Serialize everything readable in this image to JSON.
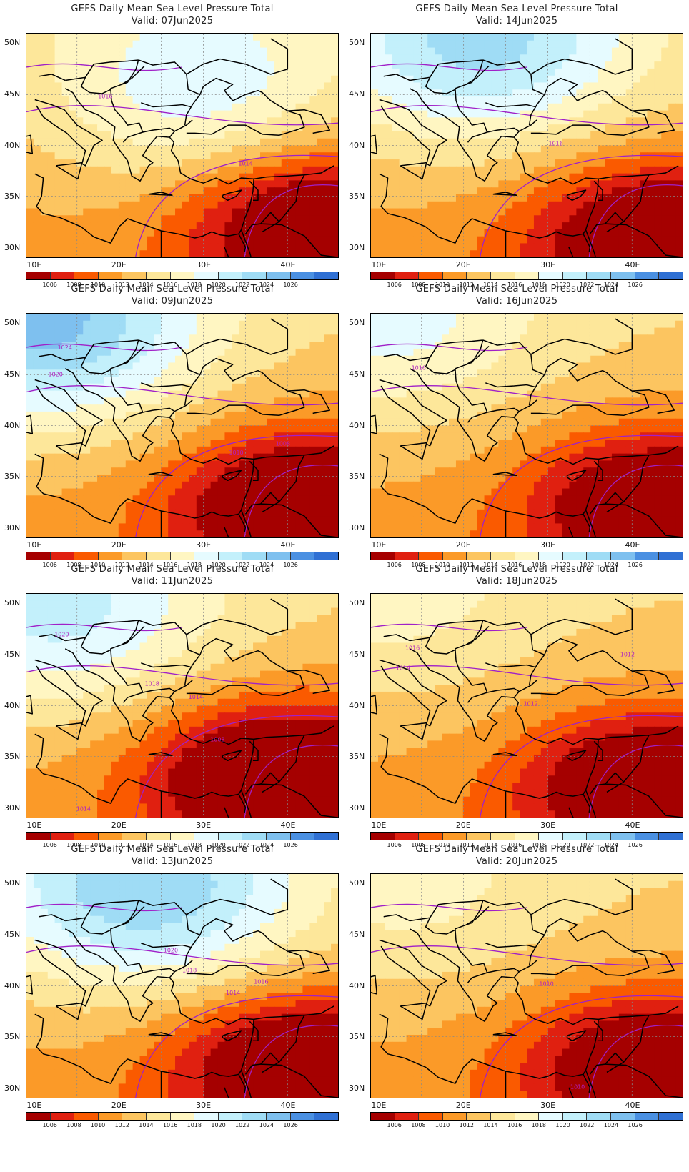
{
  "title": "GEFS Daily Mean Sea Level Pressure Total",
  "valid_prefix": "Valid:",
  "lat_labels": [
    "50N",
    "45N",
    "40N",
    "35N",
    "30N"
  ],
  "lon_labels": [
    "10E",
    "20E",
    "30E",
    "40E"
  ],
  "colorbar": {
    "colors": [
      "#a50000",
      "#e02010",
      "#fa5a00",
      "#fb9a28",
      "#fcc560",
      "#fde79a",
      "#fff6c2",
      "#e6fbff",
      "#c3f0fb",
      "#9fdcf5",
      "#7ec0ef",
      "#4a90e2",
      "#2f70d4"
    ],
    "labels": [
      "1006",
      "1008",
      "1010",
      "1012",
      "1014",
      "1016",
      "1018",
      "1020",
      "1022",
      "1024",
      "1026"
    ]
  },
  "panels": [
    {
      "id": "p1",
      "date": "07Jun2025",
      "contours": [
        "1016",
        "1014"
      ]
    },
    {
      "id": "p2",
      "date": "14Jun2025",
      "contours": [
        "1016"
      ]
    },
    {
      "id": "p3",
      "date": "09Jun2025",
      "contours": [
        "1024",
        "1020",
        "1010",
        "1008"
      ]
    },
    {
      "id": "p4",
      "date": "16Jun2025",
      "contours": [
        "1016"
      ]
    },
    {
      "id": "p5",
      "date": "11Jun2025",
      "contours": [
        "1020",
        "1018",
        "1014",
        "1008",
        "1014"
      ]
    },
    {
      "id": "p6",
      "date": "18Jun2025",
      "contours": [
        "1016",
        "1014",
        "1012",
        "1012"
      ]
    },
    {
      "id": "p7",
      "date": "13Jun2025",
      "contours": [
        "1020",
        "1018",
        "1016",
        "1014"
      ]
    },
    {
      "id": "p8",
      "date": "20Jun2025",
      "contours": [
        "1010",
        "1010"
      ]
    }
  ]
}
